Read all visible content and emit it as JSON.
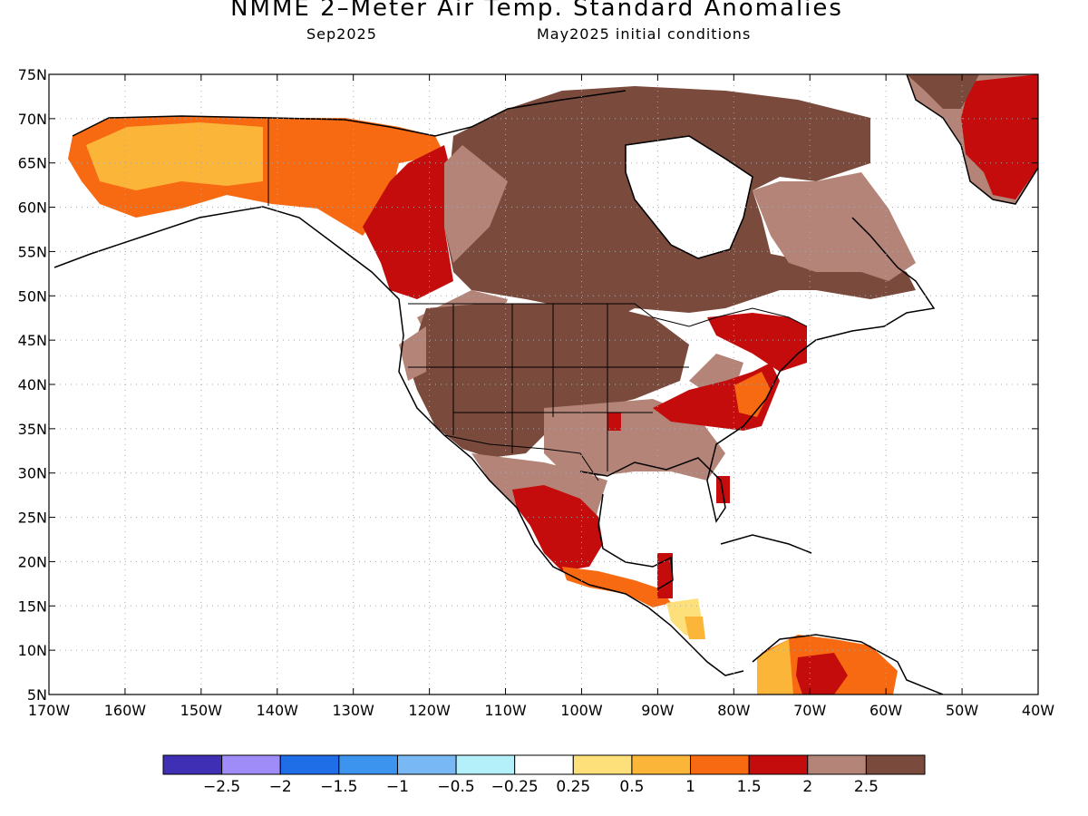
{
  "header": {
    "title": "NMME 2–Meter Air Temp. Standard Anomalies",
    "target_month": "Sep2025",
    "initial_conditions": "May2025 initial conditions"
  },
  "axes": {
    "lat_labels": [
      "75N",
      "70N",
      "65N",
      "60N",
      "55N",
      "50N",
      "45N",
      "40N",
      "35N",
      "30N",
      "25N",
      "20N",
      "15N",
      "10N",
      "5N"
    ],
    "lon_labels": [
      "170W",
      "160W",
      "150W",
      "140W",
      "130W",
      "120W",
      "110W",
      "100W",
      "90W",
      "80W",
      "70W",
      "60W",
      "50W",
      "40W"
    ],
    "lat_range": [
      5,
      75
    ],
    "lon_range": [
      -170,
      -40
    ]
  },
  "colorbar": {
    "colors": [
      "#3f2fb4",
      "#a08cf8",
      "#1f6ee8",
      "#3d94ee",
      "#78b8f4",
      "#b4f0fa",
      "#ffffff",
      "#fde07a",
      "#fbb63a",
      "#f76a12",
      "#c40c0c",
      "#b48478",
      "#7a4a3c"
    ],
    "tick_labels": [
      "−2.5",
      "−2",
      "−1.5",
      "−1",
      "−0.5",
      "−0.25",
      "0.25",
      "0.5",
      "1",
      "1.5",
      "2",
      "2.5"
    ]
  },
  "map_colors": {
    "ocean": "#ffffff",
    "coast": "#000000",
    "grid": "#a8a8a8"
  }
}
